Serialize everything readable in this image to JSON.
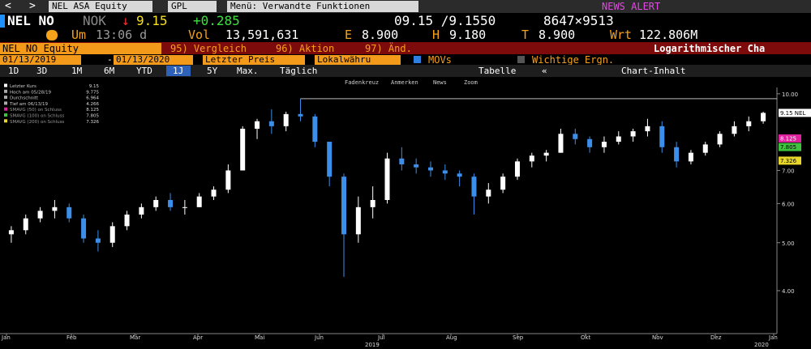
{
  "ui": {
    "nav": {
      "back": "<",
      "forward": ">",
      "security": "NEL ASA Equity",
      "source": "GPL",
      "menu": "Menü: Verwandte Funktionen",
      "news": "NEWS ALERT"
    },
    "quote": {
      "ticker": "NEL NO",
      "currency": "NOK",
      "direction": "↓",
      "last": "9.15",
      "change": "+0.285",
      "bidask": "09.15 /9.1550",
      "size": "8647×9513"
    },
    "stats": [
      {
        "label": "Um",
        "value": "13:06 d"
      },
      {
        "label": "Vol",
        "value": "13,591,631"
      },
      {
        "label": "E",
        "value": "8.900"
      },
      {
        "label": "H",
        "value": "9.180"
      },
      {
        "label": "T",
        "value": "8.900"
      },
      {
        "label": "Wrt",
        "value": "122.806M"
      }
    ],
    "menu": {
      "equity": "NEL NO Equity",
      "items": [
        "95) Vergleich",
        "96) Aktion",
        "97) Änd."
      ],
      "scale": "Logarithmischer Cha"
    },
    "settings": {
      "start": "01/13/2019",
      "separator": "-",
      "end": "01/13/2020",
      "field": "Letzter Preis",
      "currency": "Lokalwähru",
      "movs": "MOVs",
      "events": "Wichtige Ergn."
    },
    "periods": [
      "1D",
      "3D",
      "1M",
      "6M",
      "YTD",
      "1J",
      "5Y",
      "Max."
    ],
    "frequency": "Täglich",
    "table": "Tabelle",
    "content": "Chart-Inhalt",
    "tools": [
      "Fadenkreuz",
      "Anmerken",
      "News",
      "Zoom"
    ]
  },
  "chart_data": {
    "type": "candlestick",
    "log_scale": true,
    "categories": [
      null,
      null,
      null,
      null,
      null,
      null,
      null,
      null,
      null,
      null,
      null,
      null,
      null,
      null,
      null,
      null,
      null,
      null,
      null,
      null,
      null,
      null,
      null,
      null,
      null,
      null,
      null,
      null,
      null,
      null,
      null,
      null,
      null,
      null,
      null,
      null,
      null,
      null,
      null,
      null,
      null,
      null,
      null,
      null,
      null,
      null,
      null,
      null,
      null,
      null,
      null,
      null,
      null
    ],
    "open": [
      5.2,
      5.3,
      5.6,
      5.8,
      5.9,
      5.6,
      5.1,
      5.0,
      5.4,
      5.7,
      5.9,
      6.1,
      5.9,
      5.9,
      6.2,
      6.4,
      7.0,
      8.5,
      8.8,
      8.6,
      9.1,
      9.0,
      8.0,
      6.8,
      5.2,
      5.9,
      6.1,
      7.4,
      7.2,
      7.1,
      7.0,
      6.9,
      6.8,
      6.2,
      6.4,
      6.8,
      7.3,
      7.5,
      7.6,
      8.3,
      8.1,
      7.8,
      8.0,
      8.2,
      8.4,
      8.6,
      7.8,
      7.3,
      7.6,
      7.9,
      8.3,
      8.6,
      8.8
    ],
    "high": [
      5.4,
      5.7,
      5.9,
      6.1,
      6.0,
      5.7,
      5.3,
      5.5,
      5.8,
      6.0,
      6.2,
      6.3,
      6.1,
      6.3,
      6.5,
      7.2,
      8.6,
      8.9,
      9.3,
      9.2,
      9.775,
      9.1,
      8.0,
      6.9,
      6.2,
      6.5,
      7.6,
      7.8,
      7.4,
      7.3,
      7.2,
      7.0,
      6.9,
      6.6,
      6.9,
      7.4,
      7.6,
      7.7,
      8.5,
      8.5,
      8.2,
      8.2,
      8.4,
      8.5,
      8.9,
      8.8,
      8.0,
      7.7,
      8.0,
      8.4,
      8.8,
      9.0,
      9.2
    ],
    "low": [
      5.0,
      5.2,
      5.5,
      5.6,
      5.5,
      5.0,
      4.8,
      4.9,
      5.3,
      5.6,
      5.8,
      5.8,
      5.7,
      5.9,
      6.1,
      6.3,
      7.0,
      8.1,
      8.3,
      8.4,
      8.8,
      7.8,
      6.5,
      4.266,
      5.0,
      5.6,
      6.0,
      7.0,
      6.9,
      6.8,
      6.7,
      6.5,
      5.7,
      6.0,
      6.3,
      6.7,
      7.1,
      7.3,
      7.6,
      7.9,
      7.6,
      7.6,
      7.9,
      8.0,
      8.2,
      7.6,
      7.1,
      7.2,
      7.5,
      7.8,
      8.2,
      8.4,
      8.7
    ],
    "close": [
      5.3,
      5.6,
      5.8,
      5.9,
      5.6,
      5.1,
      5.0,
      5.4,
      5.7,
      5.9,
      6.1,
      5.9,
      5.9,
      6.2,
      6.4,
      7.0,
      8.5,
      8.8,
      8.6,
      9.1,
      9.0,
      8.0,
      6.8,
      5.2,
      5.9,
      6.1,
      7.4,
      7.2,
      7.1,
      7.0,
      6.9,
      6.8,
      6.2,
      6.4,
      6.8,
      7.3,
      7.5,
      7.6,
      8.3,
      8.1,
      7.8,
      8.0,
      8.2,
      8.4,
      8.6,
      7.8,
      7.3,
      7.6,
      7.9,
      8.3,
      8.6,
      8.8,
      9.15
    ],
    "up_color": "#ffffff",
    "down_color": "#3c8ee8",
    "ylim": [
      3.3,
      10.3
    ],
    "yticks": [
      {
        "value": 4,
        "label": "4.00"
      },
      {
        "value": 5,
        "label": "5.00"
      },
      {
        "value": 6,
        "label": "6.00"
      },
      {
        "value": 7,
        "label": "7.00"
      },
      {
        "value": 10,
        "label": "10.00"
      }
    ],
    "month_labels": [
      "Jan",
      "Feb",
      "Mär",
      "Apr",
      "Mai",
      "Jun",
      "Jul",
      "Aug",
      "Sep",
      "Okt",
      "Nov",
      "Dez",
      "Jan"
    ],
    "year_labels": [
      "2019",
      "2020"
    ],
    "legend": [
      {
        "name": "Letzter Kurs",
        "value": 9.15,
        "color": "#ffffff"
      },
      {
        "name": "Hoch am 05/28/19",
        "value": 9.775,
        "color": "#aaaaaa"
      },
      {
        "name": "Durchschnitt",
        "value": 6.964,
        "color": "#aaaaaa"
      },
      {
        "name": "Tief am 06/13/19",
        "value": 4.266,
        "color": "#aaaaaa"
      },
      {
        "name": "SMAVG (50)  on Schluss",
        "value": 8.125,
        "color": "#e0219e"
      },
      {
        "name": "SMAVG (100)  on Schluss",
        "value": 7.805,
        "color": "#3ec33e"
      },
      {
        "name": "SMAVG (200)  on Schluss",
        "value": 7.326,
        "color": "#e8d62a"
      }
    ],
    "last_badge": {
      "value": 9.15,
      "label": "9.15  NEL"
    }
  }
}
